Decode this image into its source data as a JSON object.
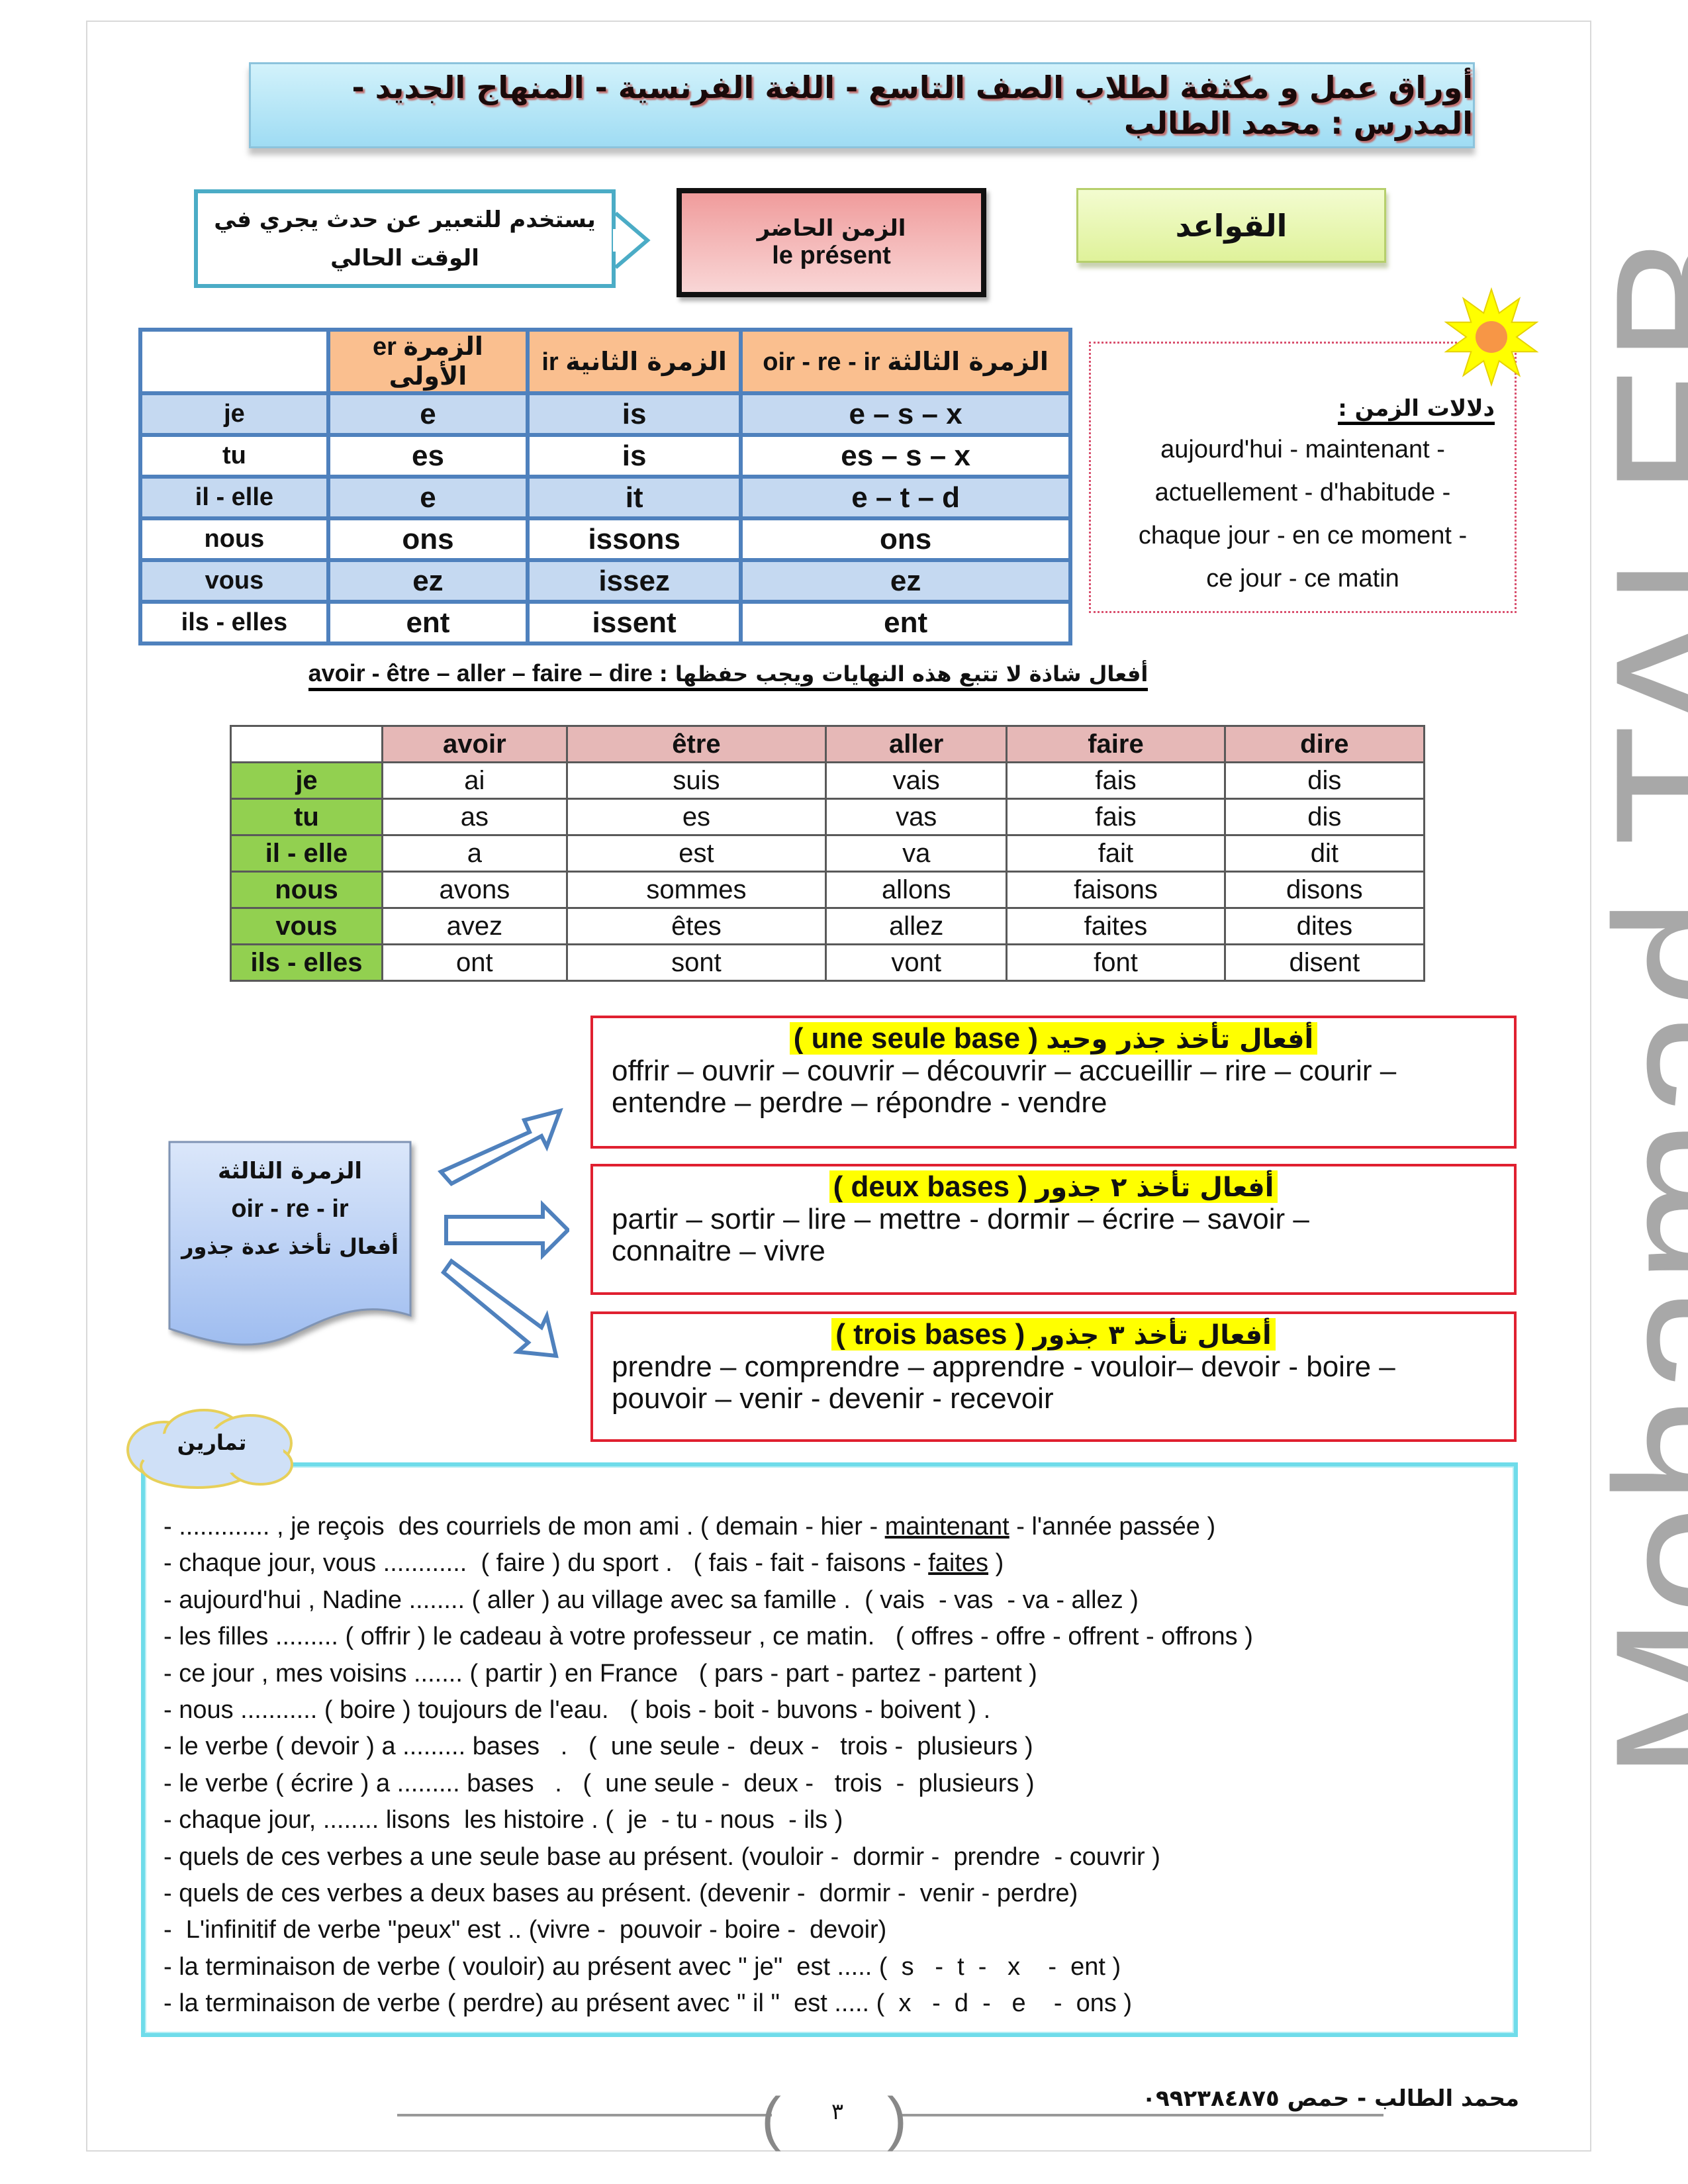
{
  "header": {
    "title": "أوراق عمل و مكثفة لطلاب الصف التاسع - اللغة الفرنسية - المنهاج الجديد - المدرس : محمد الطالب"
  },
  "intro": {
    "usage_line1": "يستخدم للتعبير عن حدث يجري في",
    "usage_line2": "الوقت الحالي",
    "tense_ar": "الزمن الحاضر",
    "tense_fr": "le présent",
    "rules_label": "القواعد"
  },
  "endings_table": {
    "headers": [
      {
        "ar": "الزمرة الأولى",
        "fr": "er"
      },
      {
        "ar": "الزمرة الثانية",
        "fr": "ir"
      },
      {
        "ar": "الزمرة الثالثة",
        "fr": "oir - re - ir"
      }
    ],
    "rows": [
      {
        "pronoun": "je",
        "cells": [
          "e",
          "is",
          "e – s – x"
        ]
      },
      {
        "pronoun": "tu",
        "cells": [
          "es",
          "is",
          "es – s – x"
        ]
      },
      {
        "pronoun": "il - elle",
        "cells": [
          "e",
          "it",
          "e – t – d"
        ]
      },
      {
        "pronoun": "nous",
        "cells": [
          "ons",
          "issons",
          "ons"
        ]
      },
      {
        "pronoun": "vous",
        "cells": [
          "ez",
          "issez",
          "ez"
        ]
      },
      {
        "pronoun": "ils - elles",
        "cells": [
          "ent",
          "issent",
          "ent"
        ]
      }
    ]
  },
  "time_markers": {
    "title": "دلالات الزمن :",
    "lines": [
      "aujourd'hui - maintenant -",
      "actuellement - d'habitude -",
      "chaque jour - en ce moment -",
      "ce jour - ce matin"
    ]
  },
  "irregular": {
    "note_ar": "أفعال شاذة لا تتبع هذه النهايات ويجب حفظها :",
    "note_fr": "avoir  - être – aller – faire – dire",
    "headers": [
      "avoir",
      "être",
      "aller",
      "faire",
      "dire"
    ],
    "rows": [
      {
        "pronoun": "je",
        "cells": [
          "ai",
          "suis",
          "vais",
          "fais",
          "dis"
        ]
      },
      {
        "pronoun": "tu",
        "cells": [
          "as",
          "es",
          "vas",
          "fais",
          "dis"
        ]
      },
      {
        "pronoun": "il - elle",
        "cells": [
          "a",
          "est",
          "va",
          "fait",
          "dit"
        ]
      },
      {
        "pronoun": "nous",
        "cells": [
          "avons",
          "sommes",
          "allons",
          "faisons",
          "disons"
        ]
      },
      {
        "pronoun": "vous",
        "cells": [
          "avez",
          "êtes",
          "allez",
          "faites",
          "dites"
        ]
      },
      {
        "pronoun": "ils - elles",
        "cells": [
          "ont",
          "sont",
          "vont",
          "font",
          "disent"
        ]
      }
    ]
  },
  "third_group": {
    "title_ar": "الزمرة الثالثة",
    "endings": "oir - re - ir",
    "subtitle_ar": "أفعال تأخذ عدة جذور",
    "boxes": [
      {
        "heading_ar": "أفعال تأخذ جذر وحيد",
        "heading_fr": "(  une seule base )",
        "line1": "offrir – ouvrir – couvrir – découvrir – accueillir – rire – courir –",
        "line2": "entendre – perdre – répondre -  vendre"
      },
      {
        "heading_ar": "أفعال تأخذ ٢ جذور",
        "heading_fr": "( deux  bases )",
        "line1": "partir – sortir – lire – mettre  - dormir – écrire – savoir –",
        "line2": "connaitre – vivre"
      },
      {
        "heading_ar": "أفعال تأخذ ٣ جذور",
        "heading_fr": "( trois  bases )",
        "line1": "prendre – comprendre – apprendre - vouloir– devoir - boire –",
        "line2": "pouvoir – venir - devenir - recevoir"
      }
    ]
  },
  "exercises": {
    "label": "تمارين",
    "lines": [
      [
        {
          "t": "- ............. , je reçois  des courriels de mon ami . ( demain - hier - "
        },
        {
          "t": "maintenant",
          "u": true
        },
        {
          "t": " - l'année passée )"
        }
      ],
      [
        {
          "t": "- chaque jour, vous ............  ( faire ) du sport .   ( fais - fait - faisons - "
        },
        {
          "t": "faites",
          "u": true
        },
        {
          "t": " )"
        }
      ],
      [
        {
          "t": "- aujourd'hui , Nadine ........ ( aller ) au village avec sa famille .  ( vais  - vas  - va - allez )"
        }
      ],
      [
        {
          "t": "- les filles ......... ( offrir ) le cadeau à votre professeur , ce matin.   ( offres - offre - offrent - offrons )"
        }
      ],
      [
        {
          "t": "- ce jour , mes voisins ....... ( partir ) en France   ( pars - part - partez - partent )"
        }
      ],
      [
        {
          "t": "- nous ........... ( boire ) toujours de l'eau.   ( bois - boit - buvons - boivent ) ."
        }
      ],
      [
        {
          "t": "- le verbe ( devoir ) a ......... bases   .   (  une seule -  deux -   trois -  plusieurs )"
        }
      ],
      [
        {
          "t": "- le verbe ( écrire ) a ......... bases   .   (  une seule -  deux -   trois  -  plusieurs )"
        }
      ],
      [
        {
          "t": "- chaque jour, ........ lisons  les histoire . (  je  - tu - nous  - ils )"
        }
      ],
      [
        {
          "t": "- quels de ces verbes a une seule base au présent. (vouloir -  dormir -  prendre  - couvrir )"
        }
      ],
      [
        {
          "t": "- quels de ces verbes a deux bases au présent. (devenir -  dormir -  venir - perdre)"
        }
      ],
      [
        {
          "t": "-  L'infinitif de verbe \"peux\" est .. (vivre -  pouvoir - boire -  devoir)"
        }
      ],
      [
        {
          "t": "- la terminaison de verbe ( vouloir) au présent avec \" je\"  est ..... (  s   -  t  -   x    -  ent )"
        }
      ],
      [
        {
          "t": "- la terminaison de verbe ( perdre) au présent avec \" il \"  est ..... (  x   -  d  -   e    -  ons )"
        }
      ]
    ]
  },
  "watermark": "Mohamad TALEB",
  "footer": {
    "page_number": "٣",
    "author": "محمد الطالب - حمص ٠٩٩٢٣٨٤٨٧٥"
  },
  "colors": {
    "banner": "#a5dff5",
    "endings_header": "#fabf8f",
    "endings_row": "#c5d9f1",
    "irregular_header": "#e6b8b7",
    "pronoun_col": "#92d050",
    "box_border": "#e02030",
    "highlight": "#ffff00",
    "exercise_border": "#6fdcea"
  },
  "icons": {
    "sun": "sun-icon",
    "arrows": "block-arrow-icon",
    "cloud": "cloud-shape"
  }
}
